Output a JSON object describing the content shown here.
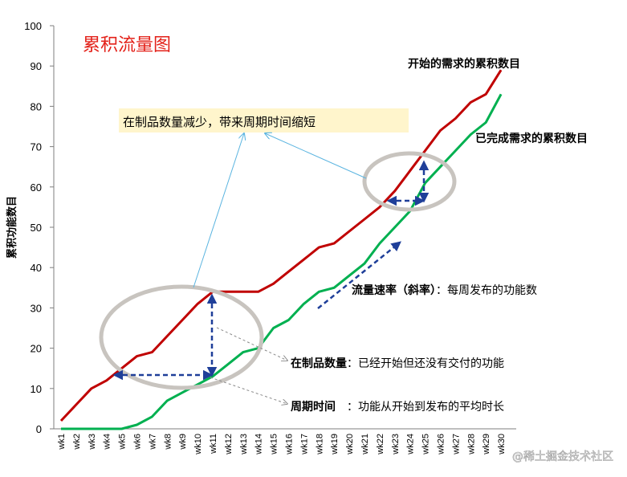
{
  "chart_data": {
    "type": "line",
    "title": "累积流量图",
    "ylabel": "累积功能数目",
    "xlabel": "",
    "ylim": [
      0,
      100
    ],
    "yticks": [
      0,
      10,
      20,
      30,
      40,
      50,
      60,
      70,
      80,
      90,
      100
    ],
    "grid": false,
    "categories": [
      "wk1",
      "wk2",
      "wk3",
      "wk4",
      "wk5",
      "wk6",
      "wk7",
      "wk8",
      "wk9",
      "wk10",
      "wk11",
      "wk12",
      "wk13",
      "wk14",
      "wk15",
      "wk16",
      "wk17",
      "wk18",
      "wk19",
      "wk20",
      "wk21",
      "wk22",
      "wk23",
      "wk24",
      "wk25",
      "wk26",
      "wk27",
      "wk28",
      "wk29",
      "wk30"
    ],
    "series": [
      {
        "name": "开始的需求的累积数目",
        "color": "#c00000",
        "values": [
          2,
          6,
          10,
          12,
          15,
          18,
          19,
          23,
          27,
          31,
          34,
          34,
          34,
          34,
          36,
          39,
          42,
          45,
          46,
          49,
          52,
          55,
          59,
          64,
          69,
          74,
          77,
          81,
          83,
          89
        ]
      },
      {
        "name": "已完成需求的累积数目",
        "color": "#00b050",
        "values": [
          0,
          0,
          0,
          0,
          0,
          1,
          3,
          7,
          9,
          11,
          13,
          16,
          19,
          20,
          25,
          27,
          31,
          34,
          35,
          38,
          41,
          46,
          50,
          54,
          61,
          65,
          69,
          73,
          76,
          83
        ]
      }
    ],
    "annotations": {
      "wip_callout": "在制品数量减少，带来周期时间缩短",
      "flow_rate_bold": "流量速率（斜率）",
      "flow_rate_rest": "：每周发布的功能数",
      "wip_bold": "在制品数量",
      "wip_rest": "：已经开始但还没有交付的功能",
      "cycle_bold": "周期时间",
      "cycle_rest": "：功能从开始到发布的平均时长"
    }
  },
  "watermark": "@稀土掘金技术社区",
  "colors": {
    "title": "#e32119",
    "started": "#c00000",
    "done": "#00b050",
    "arrow": "#1f3f99",
    "ellipse": "#c8c4bf",
    "callout_bg": "#fff5cc",
    "leader": "#5ab4e0"
  }
}
